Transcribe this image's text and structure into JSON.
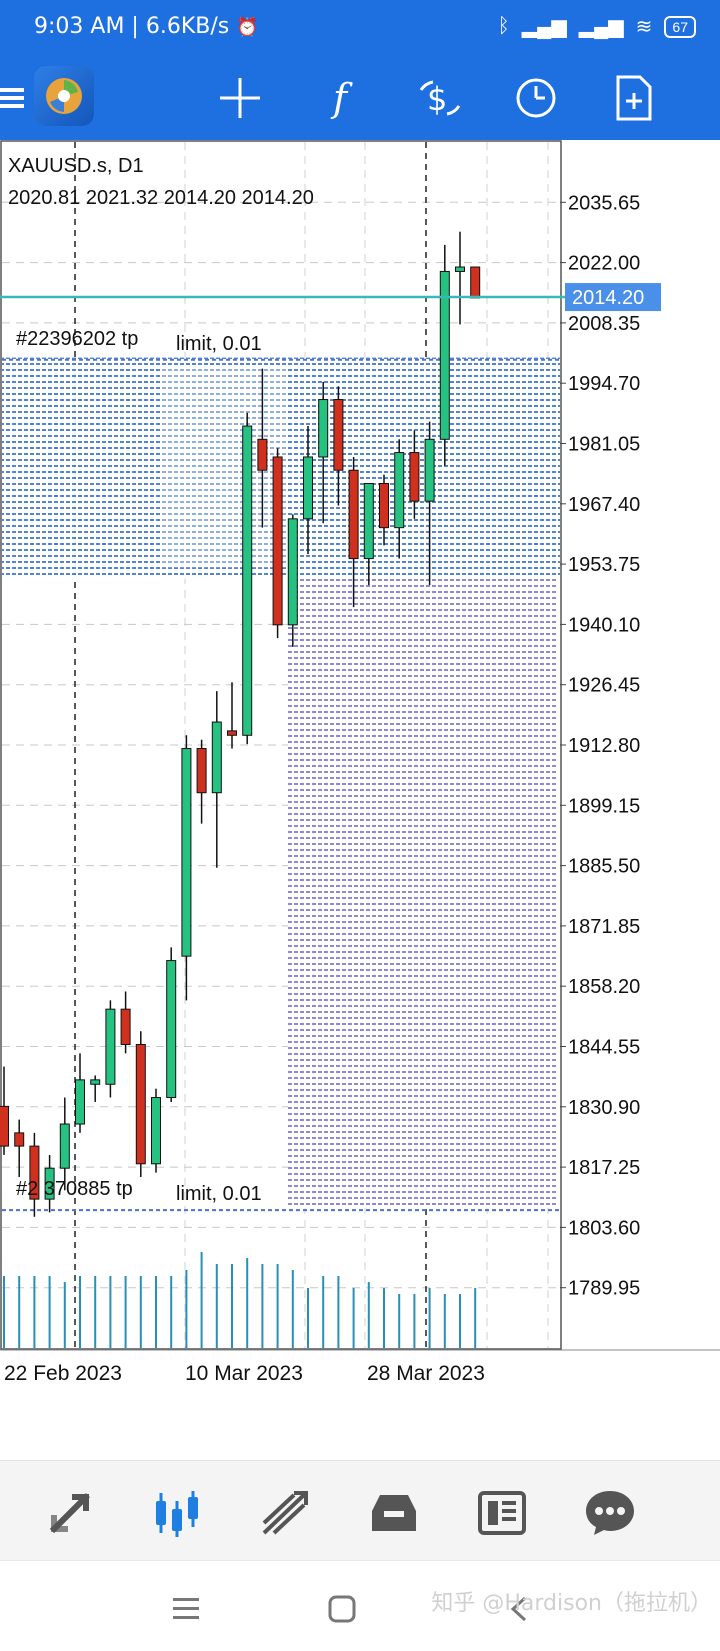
{
  "status_bar": {
    "time": "9:03 AM",
    "speed": "6.6KB/s",
    "battery": "67",
    "icons": [
      "alarm-off-icon",
      "bluetooth-icon",
      "signal-hd-icon",
      "signal-hd-icon",
      "wifi-icon",
      "battery-icon"
    ]
  },
  "toolbar": {
    "buttons": [
      "menu-icon",
      "app-logo",
      "crosshair-icon",
      "indicators-icon",
      "trade-icon",
      "timeframe-icon",
      "new-order-icon"
    ],
    "indicators_glyph": "f"
  },
  "chart": {
    "symbol": "XAUUSD.s, D1",
    "ohlc": "2020.81 2021.32 2014.20 2014.20",
    "current_price_label": "2014.20",
    "order_label_top": "#22396202 tp",
    "order_label_bottom": "#2  370885 tp",
    "limit_label": "limit, 0.01",
    "colors": {
      "bull": "#26c281",
      "bear": "#d0311f",
      "price_line": "#3bb7b7",
      "label_bg": "#4a8fe8",
      "volume": "#2a8fb8"
    }
  },
  "chart_data": {
    "type": "candlestick",
    "y_ticks": [
      "2035.65",
      "2022.00",
      "2008.35",
      "1994.70",
      "1981.05",
      "1967.40",
      "1953.75",
      "1940.10",
      "1926.45",
      "1912.80",
      "1899.15",
      "1885.50",
      "1871.85",
      "1858.20",
      "1844.55",
      "1830.90",
      "1817.25",
      "1803.60",
      "1789.95"
    ],
    "x_ticks": [
      "22 Feb 2023",
      "10 Mar 2023",
      "28 Mar 2023"
    ],
    "candles": [
      {
        "o": 1831,
        "h": 1840,
        "l": 1820,
        "c": 1822
      },
      {
        "o": 1825,
        "h": 1828,
        "l": 1815,
        "c": 1822
      },
      {
        "o": 1822,
        "h": 1825,
        "l": 1806,
        "c": 1810
      },
      {
        "o": 1810,
        "h": 1820,
        "l": 1807,
        "c": 1817
      },
      {
        "o": 1817,
        "h": 1833,
        "l": 1812,
        "c": 1827
      },
      {
        "o": 1827,
        "h": 1843,
        "l": 1825,
        "c": 1837
      },
      {
        "o": 1836,
        "h": 1838,
        "l": 1832,
        "c": 1837
      },
      {
        "o": 1836,
        "h": 1855,
        "l": 1833,
        "c": 1853
      },
      {
        "o": 1853,
        "h": 1857,
        "l": 1843,
        "c": 1845
      },
      {
        "o": 1845,
        "h": 1848,
        "l": 1815,
        "c": 1818
      },
      {
        "o": 1818,
        "h": 1835,
        "l": 1816,
        "c": 1833
      },
      {
        "o": 1833,
        "h": 1867,
        "l": 1832,
        "c": 1864
      },
      {
        "o": 1865,
        "h": 1915,
        "l": 1855,
        "c": 1912
      },
      {
        "o": 1912,
        "h": 1914,
        "l": 1895,
        "c": 1902
      },
      {
        "o": 1902,
        "h": 1925,
        "l": 1885,
        "c": 1918
      },
      {
        "o": 1916,
        "h": 1927,
        "l": 1912,
        "c": 1915
      },
      {
        "o": 1915,
        "h": 1988,
        "l": 1913,
        "c": 1985
      },
      {
        "o": 1982,
        "h": 1998,
        "l": 1962,
        "c": 1975
      },
      {
        "o": 1978,
        "h": 1980,
        "l": 1937,
        "c": 1940
      },
      {
        "o": 1940,
        "h": 1965,
        "l": 1935,
        "c": 1964
      },
      {
        "o": 1964,
        "h": 1985,
        "l": 1956,
        "c": 1978
      },
      {
        "o": 1978,
        "h": 1995,
        "l": 1963,
        "c": 1991
      },
      {
        "o": 1991,
        "h": 1994,
        "l": 1967,
        "c": 1975
      },
      {
        "o": 1975,
        "h": 1978,
        "l": 1944,
        "c": 1955
      },
      {
        "o": 1955,
        "h": 1972,
        "l": 1949,
        "c": 1972
      },
      {
        "o": 1972,
        "h": 1974,
        "l": 1958,
        "c": 1962
      },
      {
        "o": 1962,
        "h": 1982,
        "l": 1955,
        "c": 1979
      },
      {
        "o": 1979,
        "h": 1984,
        "l": 1964,
        "c": 1968
      },
      {
        "o": 1968,
        "h": 1986,
        "l": 1949,
        "c": 1982
      },
      {
        "o": 1982,
        "h": 2026,
        "l": 1976,
        "c": 2020
      },
      {
        "o": 2020,
        "h": 2029,
        "l": 2008,
        "c": 2021
      },
      {
        "o": 2021,
        "h": 2021,
        "l": 2014,
        "c": 2014
      }
    ],
    "volume": [
      0.6,
      0.6,
      0.6,
      0.6,
      0.55,
      0.6,
      0.6,
      0.6,
      0.6,
      0.6,
      0.6,
      0.6,
      0.65,
      0.8,
      0.7,
      0.7,
      0.75,
      0.7,
      0.7,
      0.65,
      0.5,
      0.6,
      0.6,
      0.5,
      0.55,
      0.5,
      0.45,
      0.45,
      0.5,
      0.45,
      0.45,
      0.5
    ],
    "ylim": [
      1776.3,
      2049.3
    ],
    "current_price": 2014.2,
    "order_levels": [
      2000.0,
      1807.5
    ]
  },
  "bottom_nav": {
    "items": [
      "quotes-icon",
      "chart-icon",
      "trade-icon",
      "history-icon",
      "news-icon",
      "messages-icon"
    ],
    "active": 1
  },
  "system_nav": {
    "items": [
      "menu-icon",
      "home-icon",
      "back-icon"
    ],
    "watermark": "知乎 @Hardison（拖拉机）"
  }
}
